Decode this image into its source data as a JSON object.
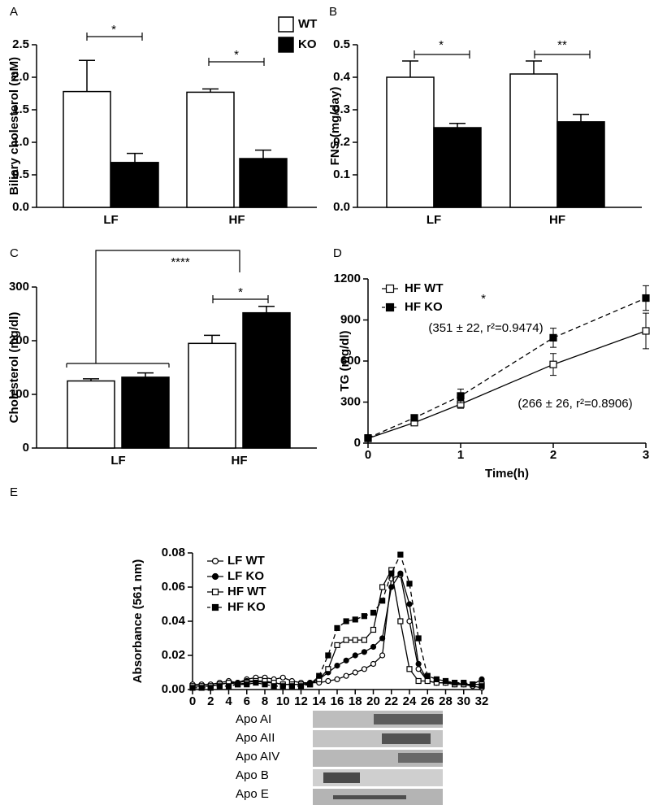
{
  "chart_data": [
    {
      "type": "bar",
      "panel": "A",
      "ylabel": "Biliary cholesterol (mM)",
      "categories": [
        "LF",
        "HF"
      ],
      "series": [
        {
          "name": "WT",
          "color": "#ffffff",
          "values": [
            1.78,
            1.77
          ],
          "errors": [
            0.48,
            0.05
          ]
        },
        {
          "name": "KO",
          "color": "#000000",
          "values": [
            0.69,
            0.75
          ],
          "errors": [
            0.14,
            0.13
          ]
        }
      ],
      "ylim": [
        0,
        2.5
      ],
      "yticks": [
        {
          "value": 0,
          "label": "0.0"
        },
        0.5,
        {
          "value": 1,
          "label": "1.0"
        },
        1.5,
        {
          "value": 2,
          "label": "2.0"
        },
        2.5
      ],
      "annotations": [
        "*",
        "*"
      ],
      "legend": true
    },
    {
      "type": "bar",
      "panel": "B",
      "ylabel": "FNS (mg/day)",
      "categories": [
        "LF",
        "HF"
      ],
      "series": [
        {
          "name": "WT",
          "color": "#ffffff",
          "values": [
            0.4,
            0.41
          ],
          "errors": [
            0.05,
            0.04
          ]
        },
        {
          "name": "KO",
          "color": "#000000",
          "values": [
            0.245,
            0.263
          ],
          "errors": [
            0.013,
            0.023
          ]
        }
      ],
      "ylim": [
        0,
        0.5
      ],
      "yticks": [
        {
          "value": 0,
          "label": "0.0"
        },
        0.1,
        0.2,
        0.3,
        0.4,
        0.5
      ],
      "annotations": [
        "*",
        "**"
      ],
      "legend": false
    },
    {
      "type": "bar",
      "panel": "C",
      "ylabel": "Cholesterol (mg/dl)",
      "categories": [
        "LF",
        "HF"
      ],
      "series": [
        {
          "name": "WT",
          "color": "#ffffff",
          "values": [
            125,
            195
          ],
          "errors": [
            4,
            15
          ]
        },
        {
          "name": "KO",
          "color": "#000000",
          "values": [
            132,
            252
          ],
          "errors": [
            8,
            12
          ]
        }
      ],
      "ylim": [
        0,
        300
      ],
      "yticks": [
        0,
        100,
        200,
        300
      ],
      "annotations": [
        "****",
        "*"
      ],
      "legend": false
    },
    {
      "type": "line",
      "panel": "D",
      "xlabel": "Time(h)",
      "ylabel": "TG (mg/dl)",
      "x": [
        0,
        0.5,
        1,
        2,
        3
      ],
      "series": [
        {
          "name": "HF WT",
          "color": "#000000",
          "marker": "square",
          "filled": false,
          "dash": false,
          "values": [
            35,
            150,
            285,
            575,
            820
          ],
          "errors": [
            5,
            15,
            30,
            80,
            130
          ]
        },
        {
          "name": "HF KO",
          "color": "#000000",
          "marker": "square",
          "filled": true,
          "dash": true,
          "values": [
            38,
            185,
            345,
            770,
            1060
          ],
          "errors": [
            5,
            15,
            50,
            70,
            90
          ]
        }
      ],
      "xlim": [
        0,
        3
      ],
      "xticks": [
        0,
        1,
        2,
        3
      ],
      "ylim": [
        0,
        1200
      ],
      "yticks": [
        0,
        300,
        600,
        900,
        1200
      ],
      "annotations": [
        "*",
        "(351 ± 22, r²=0.9474)",
        "(266 ± 26, r²=0.8906)"
      ],
      "legend": true
    },
    {
      "type": "line",
      "panel": "E",
      "ylabel": "Absorbance (561 nm)",
      "x": [
        0,
        1,
        2,
        3,
        4,
        5,
        6,
        7,
        8,
        9,
        10,
        11,
        12,
        13,
        14,
        15,
        16,
        17,
        18,
        19,
        20,
        21,
        22,
        23,
        24,
        25,
        26,
        27,
        28,
        29,
        30,
        31,
        32
      ],
      "series": [
        {
          "name": "LF WT",
          "color": "#000000",
          "marker": "circle",
          "filled": false,
          "dash": false,
          "values": [
            0.003,
            0.003,
            0.003,
            0.004,
            0.005,
            0.004,
            0.006,
            0.007,
            0.007,
            0.006,
            0.007,
            0.005,
            0.004,
            0.004,
            0.004,
            0.005,
            0.006,
            0.008,
            0.01,
            0.012,
            0.015,
            0.02,
            0.065,
            0.067,
            0.04,
            0.012,
            0.005,
            0.004,
            0.004,
            0.003,
            0.003,
            0.002,
            0.001
          ]
        },
        {
          "name": "LF KO",
          "color": "#000000",
          "marker": "circle",
          "filled": true,
          "dash": false,
          "values": [
            0.002,
            0.002,
            0.002,
            0.003,
            0.004,
            0.004,
            0.005,
            0.005,
            0.004,
            0.004,
            0.003,
            0.003,
            0.003,
            0.004,
            0.006,
            0.01,
            0.014,
            0.017,
            0.02,
            0.022,
            0.025,
            0.03,
            0.06,
            0.068,
            0.05,
            0.015,
            0.005,
            0.004,
            0.004,
            0.004,
            0.003,
            0.003,
            0.006
          ]
        },
        {
          "name": "HF WT",
          "color": "#000000",
          "marker": "square",
          "filled": false,
          "dash": false,
          "values": [
            0.002,
            0.002,
            0.002,
            0.003,
            0.004,
            0.003,
            0.004,
            0.005,
            0.005,
            0.004,
            0.003,
            0.003,
            0.003,
            0.003,
            0.006,
            0.012,
            0.026,
            0.029,
            0.029,
            0.029,
            0.035,
            0.06,
            0.07,
            0.04,
            0.012,
            0.005,
            0.005,
            0.004,
            0.004,
            0.003,
            0.003,
            0.003,
            0.003
          ]
        },
        {
          "name": "HF KO",
          "color": "#000000",
          "marker": "square",
          "filled": true,
          "dash": true,
          "values": [
            0.001,
            0.001,
            0.001,
            0.002,
            0.002,
            0.003,
            0.003,
            0.004,
            0.003,
            0.002,
            0.002,
            0.002,
            0.002,
            0.003,
            0.008,
            0.02,
            0.036,
            0.04,
            0.041,
            0.043,
            0.045,
            0.052,
            0.068,
            0.079,
            0.062,
            0.03,
            0.008,
            0.006,
            0.005,
            0.004,
            0.004,
            0.003,
            0.002
          ]
        }
      ],
      "xlim": [
        0,
        32
      ],
      "xticks": [
        0,
        2,
        4,
        6,
        8,
        10,
        12,
        14,
        16,
        18,
        20,
        22,
        24,
        26,
        28,
        30,
        32
      ],
      "ylim": [
        0,
        0.08
      ],
      "yticks": [
        {
          "value": 0,
          "label": "0.00"
        },
        0.02,
        0.04,
        0.06,
        0.08
      ],
      "blot_labels": [
        "Apo AI",
        "Apo AII",
        "Apo AIV",
        "Apo B",
        "Apo E"
      ],
      "legend": true
    }
  ]
}
